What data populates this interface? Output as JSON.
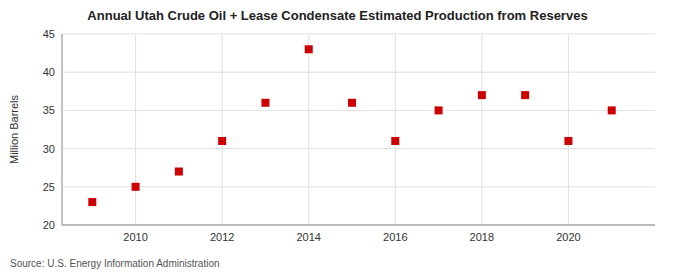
{
  "chart_data": {
    "type": "scatter",
    "title": "Annual Utah Crude Oil + Lease Condensate Estimated Production from Reserves",
    "y_label": "Million Barrels",
    "annotations": [
      "Source: U.S. Energy Information Administration"
    ],
    "x": [
      2009,
      2010,
      2011,
      2012,
      2013,
      2014,
      2015,
      2016,
      2017,
      2018,
      2019,
      2020,
      2021
    ],
    "values": [
      23.0,
      25.0,
      27.0,
      31.0,
      36.0,
      43.0,
      36.0,
      31.0,
      35.0,
      37.0,
      37.0,
      31.0,
      35.0
    ],
    "color": "#cc0000",
    "marker": "square",
    "xlim": [
      2008.3,
      2022.0
    ],
    "ylim": [
      20,
      45
    ],
    "xticks": [
      2010,
      2012,
      2014,
      2016,
      2018,
      2020
    ],
    "yticks": [
      20,
      25,
      30,
      35,
      40,
      45
    ],
    "grid": true
  }
}
